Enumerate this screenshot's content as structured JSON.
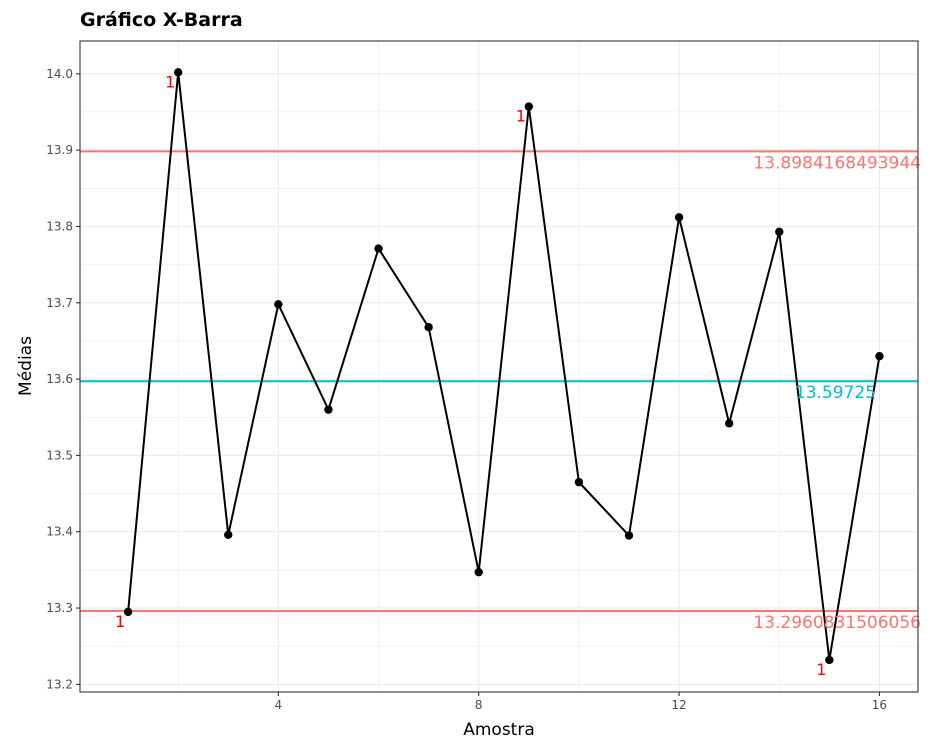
{
  "chart_data": {
    "type": "line",
    "title": "Gráfico X-Barra",
    "xlabel": "Amostra",
    "ylabel": "Médias",
    "xlim": [
      0.04,
      16.77
    ],
    "ylim": [
      13.19,
      14.043
    ],
    "x_ticks": [
      4,
      8,
      12,
      16
    ],
    "y_ticks": [
      13.2,
      13.3,
      13.4,
      13.5,
      13.6,
      13.7,
      13.8,
      13.9,
      14.0
    ],
    "x_tick_labels": [
      "4",
      "8",
      "12",
      "16"
    ],
    "y_tick_labels": [
      "13.2",
      "13.3",
      "13.4",
      "13.5",
      "13.6",
      "13.7",
      "13.8",
      "13.9",
      "14.0"
    ],
    "grid": true,
    "series": [
      {
        "x": [
          1,
          2,
          3,
          4,
          5,
          6,
          7,
          8,
          9,
          10,
          11,
          12,
          13,
          14,
          15,
          16
        ],
        "values": [
          13.295,
          14.002,
          13.396,
          13.698,
          13.56,
          13.771,
          13.668,
          13.347,
          13.957,
          13.465,
          13.395,
          13.812,
          13.542,
          13.793,
          13.232,
          13.63
        ],
        "color": "#000000"
      }
    ],
    "control_lines": [
      {
        "value": 13.8984168493944,
        "label": "13.8984168493944",
        "color": "#f8766d"
      },
      {
        "value": 13.59725,
        "label": "13.59725",
        "color": "#00bfc4"
      },
      {
        "value": 13.2960831506056,
        "label": "13.2960831506056",
        "color": "#f8766d"
      }
    ],
    "point_flags": [
      {
        "x": 1,
        "label": "1"
      },
      {
        "x": 2,
        "label": "1"
      },
      {
        "x": 9,
        "label": "1"
      },
      {
        "x": 15,
        "label": "1"
      }
    ],
    "flag_color": "#ff0000"
  }
}
